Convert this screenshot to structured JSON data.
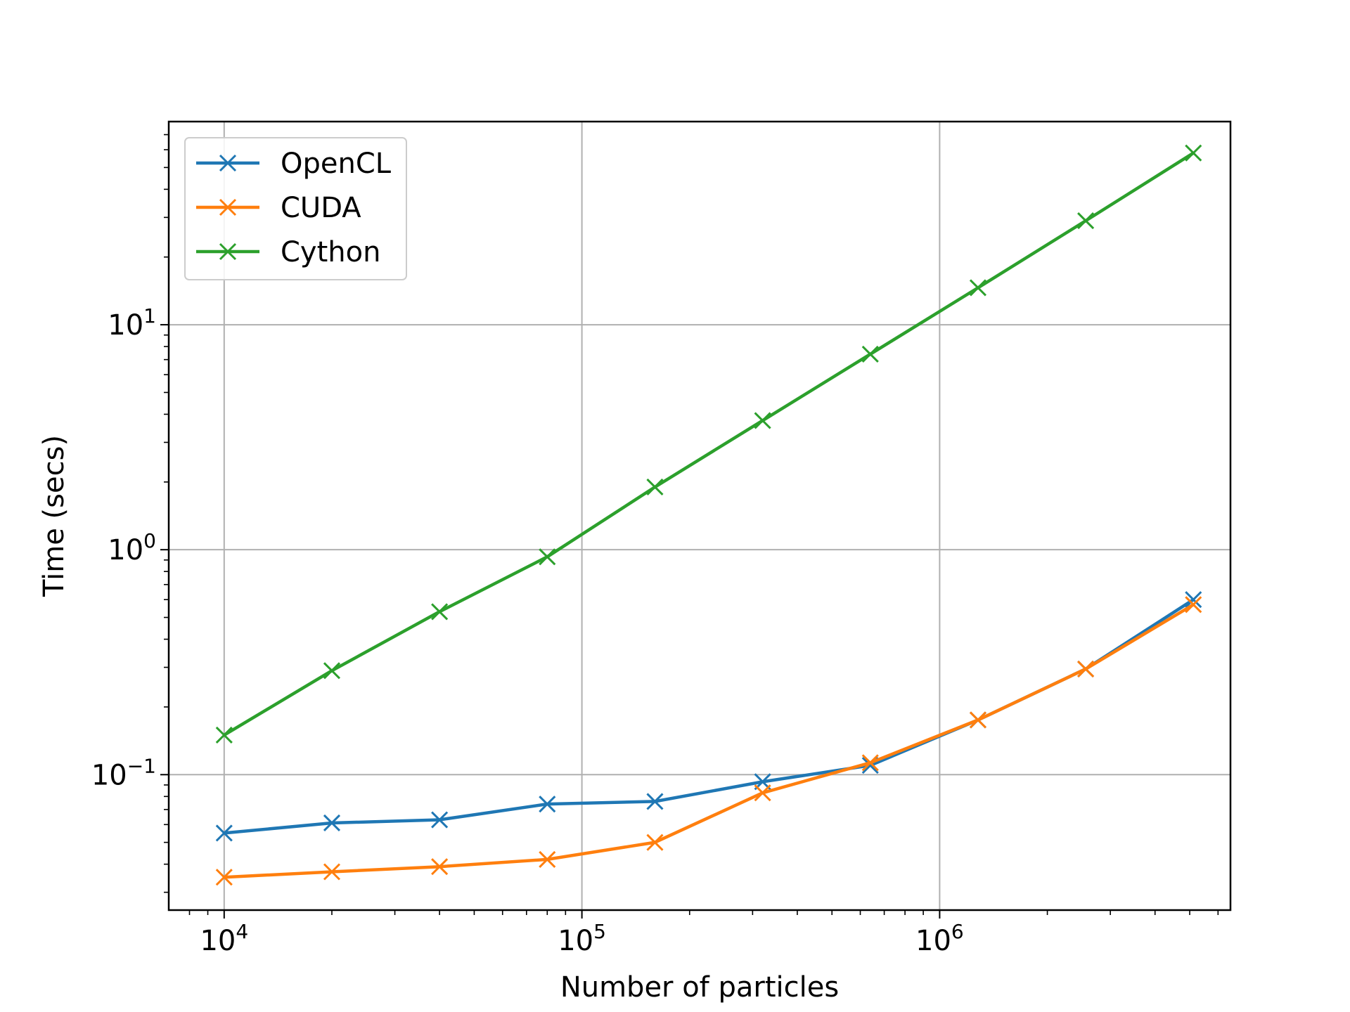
{
  "chart_data": {
    "type": "line",
    "xlabel": "Number of particles",
    "ylabel": "Time (secs)",
    "xscale": "log",
    "yscale": "log",
    "xlim": [
      7000,
      6500000
    ],
    "ylim": [
      0.025,
      80
    ],
    "grid": true,
    "legend_position": "top-left",
    "x_major_ticks": [
      {
        "value": 10000,
        "base": "10",
        "exp": "4"
      },
      {
        "value": 100000,
        "base": "10",
        "exp": "5"
      },
      {
        "value": 1000000,
        "base": "10",
        "exp": "6"
      }
    ],
    "y_major_ticks": [
      {
        "value": 0.1,
        "base": "10",
        "exp": "−1"
      },
      {
        "value": 1,
        "base": "10",
        "exp": "0"
      },
      {
        "value": 10,
        "base": "10",
        "exp": "1"
      }
    ],
    "x": [
      10000,
      20000,
      40000,
      80000,
      160000,
      320000,
      640000,
      1280000,
      2560000,
      5120000
    ],
    "series": [
      {
        "name": "OpenCL",
        "color": "#1f77b4",
        "marker": "x",
        "values": [
          0.055,
          0.061,
          0.063,
          0.074,
          0.076,
          0.093,
          0.11,
          0.175,
          0.295,
          0.6
        ]
      },
      {
        "name": "CUDA",
        "color": "#ff7f0e",
        "marker": "x",
        "values": [
          0.035,
          0.037,
          0.039,
          0.042,
          0.05,
          0.083,
          0.113,
          0.175,
          0.295,
          0.57
        ]
      },
      {
        "name": "Cython",
        "color": "#2ca02c",
        "marker": "x",
        "values": [
          0.15,
          0.29,
          0.53,
          0.93,
          1.9,
          3.75,
          7.4,
          14.6,
          29,
          58
        ]
      }
    ]
  }
}
